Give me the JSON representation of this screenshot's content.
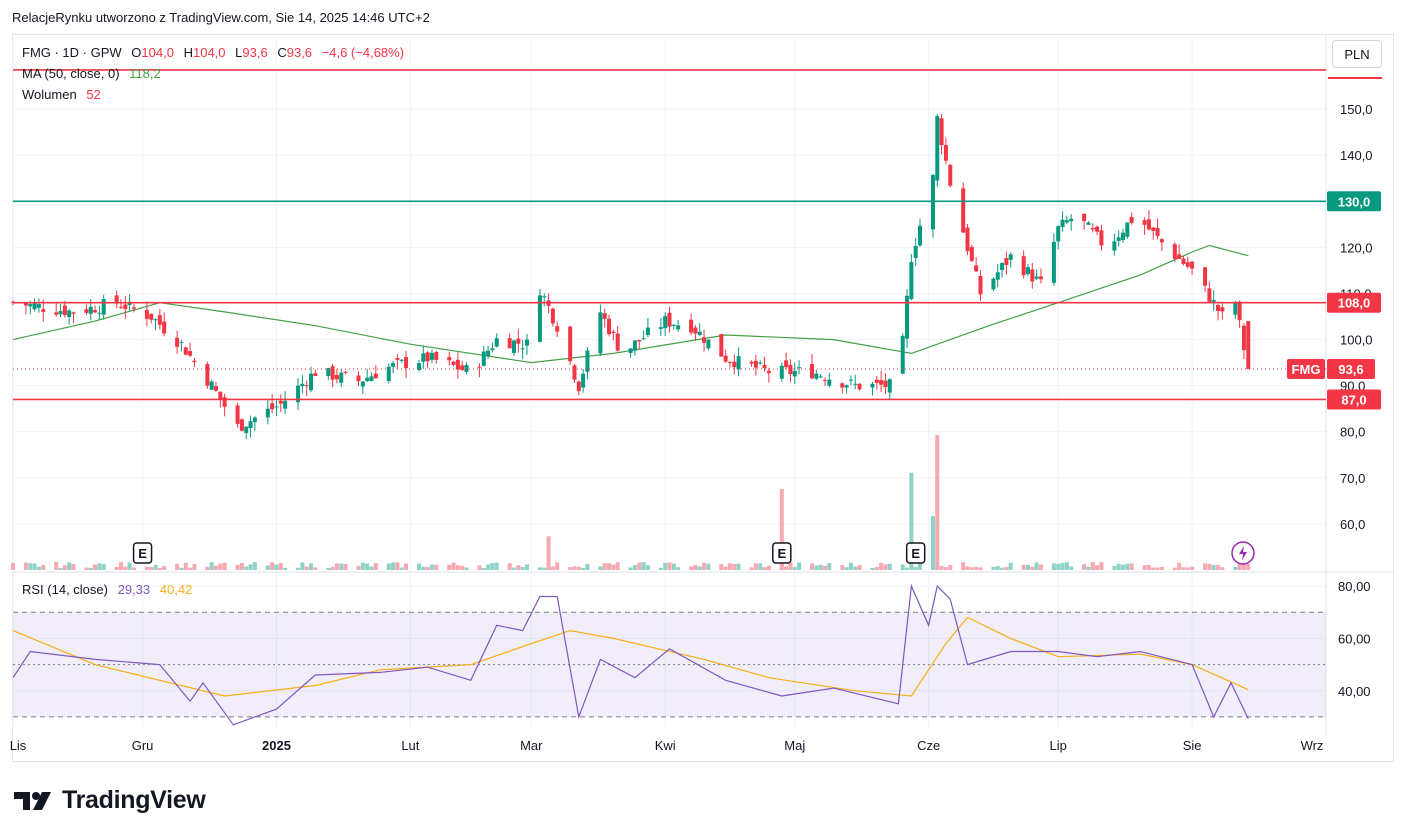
{
  "header": {
    "credit": "RelacjeRynku utworzono z TradingView.com, Sie 14, 2025 14:46 UTC+2"
  },
  "legend": {
    "symbol": "FMG · 1D · GPW",
    "o_label": "O",
    "o_value": "104,0",
    "h_label": "H",
    "h_value": "104,0",
    "l_label": "L",
    "l_value": "93,6",
    "c_label": "C",
    "c_value": "93,6",
    "change": "−4,6 (−4,68%)",
    "ma_label": "MA (50, close, 0)",
    "ma_value": "118,2",
    "volume_label": "Wolumen",
    "volume_value": "52",
    "rsi_label": "RSI (14, close)",
    "rsi_value": "29,33",
    "rsi_ma_value": "40,42"
  },
  "currency_button": "PLN",
  "badges": {
    "symbol": "FMG",
    "price": "93,6",
    "level_130": "130,0",
    "level_108": "108,0",
    "level_87": "87,0"
  },
  "earnings_marker": "E",
  "brand": "TradingView",
  "colors": {
    "up": "#089981",
    "down": "#f23645",
    "ma": "#43a047",
    "rsi": "#7e57c2",
    "rsi_ma": "#f5b01a",
    "support_line": "#f23645",
    "resistance_line": "#089981"
  },
  "chart_data": {
    "type": "candlestick",
    "symbol": "FMG",
    "currency": "PLN",
    "price_ylim": [
      50,
      165
    ],
    "price_ticks": [
      "60,0",
      "70,0",
      "80,0",
      "90,0",
      "100,0",
      "110,0",
      "120,0",
      "130,0",
      "140,0",
      "150,0"
    ],
    "price_tick_values": [
      60,
      70,
      80,
      90,
      100,
      110,
      120,
      130,
      140,
      150
    ],
    "x_labels": [
      "Lis",
      "Gru",
      "2025",
      "Lut",
      "Mar",
      "Kwi",
      "Maj",
      "Cze",
      "Lip",
      "Sie",
      "Wrz"
    ],
    "x_label_dates": [
      "2024-11-01",
      "2024-12-01",
      "2025-01-01",
      "2025-02-01",
      "2025-03-01",
      "2025-04-01",
      "2025-05-01",
      "2025-06-01",
      "2025-07-01",
      "2025-08-01",
      "2025-09-01"
    ],
    "date_range": [
      "2024-11-01",
      "2025-09-01"
    ],
    "horizontal_levels": [
      {
        "value": 158.5,
        "color": "#f23645"
      },
      {
        "value": 130.0,
        "color": "#089981"
      },
      {
        "value": 108.0,
        "color": "#f23645"
      },
      {
        "value": 87.0,
        "color": "#f23645"
      }
    ],
    "last_price": 93.6,
    "earnings_dates": [
      "2024-12-01",
      "2025-04-28",
      "2025-05-29"
    ],
    "anchor_closes": [
      {
        "date": "2024-11-01",
        "close": 108
      },
      {
        "date": "2024-11-15",
        "close": 106
      },
      {
        "date": "2024-11-25",
        "close": 108
      },
      {
        "date": "2024-12-03",
        "close": 105
      },
      {
        "date": "2024-12-10",
        "close": 99
      },
      {
        "date": "2024-12-17",
        "close": 90
      },
      {
        "date": "2024-12-23",
        "close": 81
      },
      {
        "date": "2025-01-02",
        "close": 86
      },
      {
        "date": "2025-01-10",
        "close": 93
      },
      {
        "date": "2025-01-20",
        "close": 91
      },
      {
        "date": "2025-01-27",
        "close": 94
      },
      {
        "date": "2025-02-05",
        "close": 96
      },
      {
        "date": "2025-02-15",
        "close": 93
      },
      {
        "date": "2025-02-21",
        "close": 100
      },
      {
        "date": "2025-02-28",
        "close": 99
      },
      {
        "date": "2025-03-03",
        "close": 111
      },
      {
        "date": "2025-03-07",
        "close": 103
      },
      {
        "date": "2025-03-12",
        "close": 90
      },
      {
        "date": "2025-03-17",
        "close": 106
      },
      {
        "date": "2025-03-22",
        "close": 97
      },
      {
        "date": "2025-04-01",
        "close": 104
      },
      {
        "date": "2025-04-07",
        "close": 103
      },
      {
        "date": "2025-04-15",
        "close": 96
      },
      {
        "date": "2025-04-25",
        "close": 93
      },
      {
        "date": "2025-05-05",
        "close": 93
      },
      {
        "date": "2025-05-15",
        "close": 90
      },
      {
        "date": "2025-05-25",
        "close": 90
      },
      {
        "date": "2025-05-28",
        "close": 118
      },
      {
        "date": "2025-06-02",
        "close": 135
      },
      {
        "date": "2025-06-03",
        "close": 148
      },
      {
        "date": "2025-06-06",
        "close": 134
      },
      {
        "date": "2025-06-10",
        "close": 120
      },
      {
        "date": "2025-06-13",
        "close": 110
      },
      {
        "date": "2025-06-20",
        "close": 118
      },
      {
        "date": "2025-06-27",
        "close": 112
      },
      {
        "date": "2025-07-01",
        "close": 124
      },
      {
        "date": "2025-07-05",
        "close": 127
      },
      {
        "date": "2025-07-12",
        "close": 120
      },
      {
        "date": "2025-07-19",
        "close": 127
      },
      {
        "date": "2025-07-26",
        "close": 120
      },
      {
        "date": "2025-08-01",
        "close": 115
      },
      {
        "date": "2025-08-08",
        "close": 105
      },
      {
        "date": "2025-08-11",
        "close": 108
      },
      {
        "date": "2025-08-13",
        "close": 98.2
      },
      {
        "date": "2025-08-14",
        "close": 93.6
      }
    ],
    "ma50_points": [
      {
        "date": "2024-11-01",
        "value": 100
      },
      {
        "date": "2024-11-20",
        "value": 104
      },
      {
        "date": "2024-12-05",
        "value": 108
      },
      {
        "date": "2024-12-20",
        "value": 106
      },
      {
        "date": "2025-01-10",
        "value": 103
      },
      {
        "date": "2025-02-01",
        "value": 99
      },
      {
        "date": "2025-03-01",
        "value": 95
      },
      {
        "date": "2025-03-20",
        "value": 97
      },
      {
        "date": "2025-04-15",
        "value": 101
      },
      {
        "date": "2025-05-10",
        "value": 100
      },
      {
        "date": "2025-05-28",
        "value": 97
      },
      {
        "date": "2025-06-15",
        "value": 103
      },
      {
        "date": "2025-07-01",
        "value": 108
      },
      {
        "date": "2025-07-20",
        "value": 114
      },
      {
        "date": "2025-08-01",
        "value": 119
      },
      {
        "date": "2025-08-05",
        "value": 120.4
      },
      {
        "date": "2025-08-14",
        "value": 118.2
      }
    ],
    "volume_spikes": [
      {
        "date": "2025-04-28",
        "value": 60,
        "dir": "down"
      },
      {
        "date": "2025-05-28",
        "value": 72,
        "dir": "up"
      },
      {
        "date": "2025-06-03",
        "value": 100,
        "dir": "down"
      },
      {
        "date": "2025-06-02",
        "value": 40,
        "dir": "up"
      },
      {
        "date": "2025-03-05",
        "value": 25,
        "dir": "down"
      }
    ],
    "rsi": {
      "ylim": [
        25,
        85
      ],
      "ticks": [
        "40,00",
        "60,00",
        "80,00"
      ],
      "tick_values": [
        40,
        60,
        80
      ],
      "bands": [
        30,
        50,
        70
      ],
      "last": 29.33,
      "ma_last": 40.42,
      "points": [
        {
          "date": "2024-11-01",
          "value": 45
        },
        {
          "date": "2024-11-05",
          "value": 55
        },
        {
          "date": "2024-11-20",
          "value": 52
        },
        {
          "date": "2024-12-05",
          "value": 50
        },
        {
          "date": "2024-12-12",
          "value": 36
        },
        {
          "date": "2024-12-15",
          "value": 43
        },
        {
          "date": "2024-12-22",
          "value": 27
        },
        {
          "date": "2025-01-01",
          "value": 33
        },
        {
          "date": "2025-01-10",
          "value": 46
        },
        {
          "date": "2025-01-25",
          "value": 47
        },
        {
          "date": "2025-02-05",
          "value": 49
        },
        {
          "date": "2025-02-15",
          "value": 44
        },
        {
          "date": "2025-02-21",
          "value": 65
        },
        {
          "date": "2025-02-27",
          "value": 63
        },
        {
          "date": "2025-03-03",
          "value": 76
        },
        {
          "date": "2025-03-07",
          "value": 76
        },
        {
          "date": "2025-03-12",
          "value": 30
        },
        {
          "date": "2025-03-17",
          "value": 52
        },
        {
          "date": "2025-03-25",
          "value": 45
        },
        {
          "date": "2025-04-02",
          "value": 56
        },
        {
          "date": "2025-04-15",
          "value": 44
        },
        {
          "date": "2025-04-28",
          "value": 38
        },
        {
          "date": "2025-05-10",
          "value": 41
        },
        {
          "date": "2025-05-25",
          "value": 35
        },
        {
          "date": "2025-05-28",
          "value": 80
        },
        {
          "date": "2025-06-01",
          "value": 65
        },
        {
          "date": "2025-06-03",
          "value": 80
        },
        {
          "date": "2025-06-06",
          "value": 75
        },
        {
          "date": "2025-06-10",
          "value": 50
        },
        {
          "date": "2025-06-20",
          "value": 55
        },
        {
          "date": "2025-07-01",
          "value": 55
        },
        {
          "date": "2025-07-10",
          "value": 53
        },
        {
          "date": "2025-07-20",
          "value": 55
        },
        {
          "date": "2025-08-01",
          "value": 50
        },
        {
          "date": "2025-08-06",
          "value": 30
        },
        {
          "date": "2025-08-10",
          "value": 43
        },
        {
          "date": "2025-08-14",
          "value": 29.33
        }
      ],
      "ma_points": [
        {
          "date": "2024-11-01",
          "value": 63
        },
        {
          "date": "2024-11-20",
          "value": 50
        },
        {
          "date": "2024-12-20",
          "value": 38
        },
        {
          "date": "2025-01-10",
          "value": 42
        },
        {
          "date": "2025-01-25",
          "value": 48
        },
        {
          "date": "2025-02-15",
          "value": 50
        },
        {
          "date": "2025-03-01",
          "value": 58
        },
        {
          "date": "2025-03-10",
          "value": 63
        },
        {
          "date": "2025-03-20",
          "value": 60
        },
        {
          "date": "2025-04-10",
          "value": 52
        },
        {
          "date": "2025-04-25",
          "value": 45
        },
        {
          "date": "2025-05-15",
          "value": 40
        },
        {
          "date": "2025-05-28",
          "value": 38
        },
        {
          "date": "2025-06-05",
          "value": 58
        },
        {
          "date": "2025-06-10",
          "value": 68
        },
        {
          "date": "2025-06-20",
          "value": 60
        },
        {
          "date": "2025-07-01",
          "value": 53
        },
        {
          "date": "2025-07-20",
          "value": 54
        },
        {
          "date": "2025-08-01",
          "value": 50
        },
        {
          "date": "2025-08-14",
          "value": 40.42
        }
      ]
    }
  }
}
